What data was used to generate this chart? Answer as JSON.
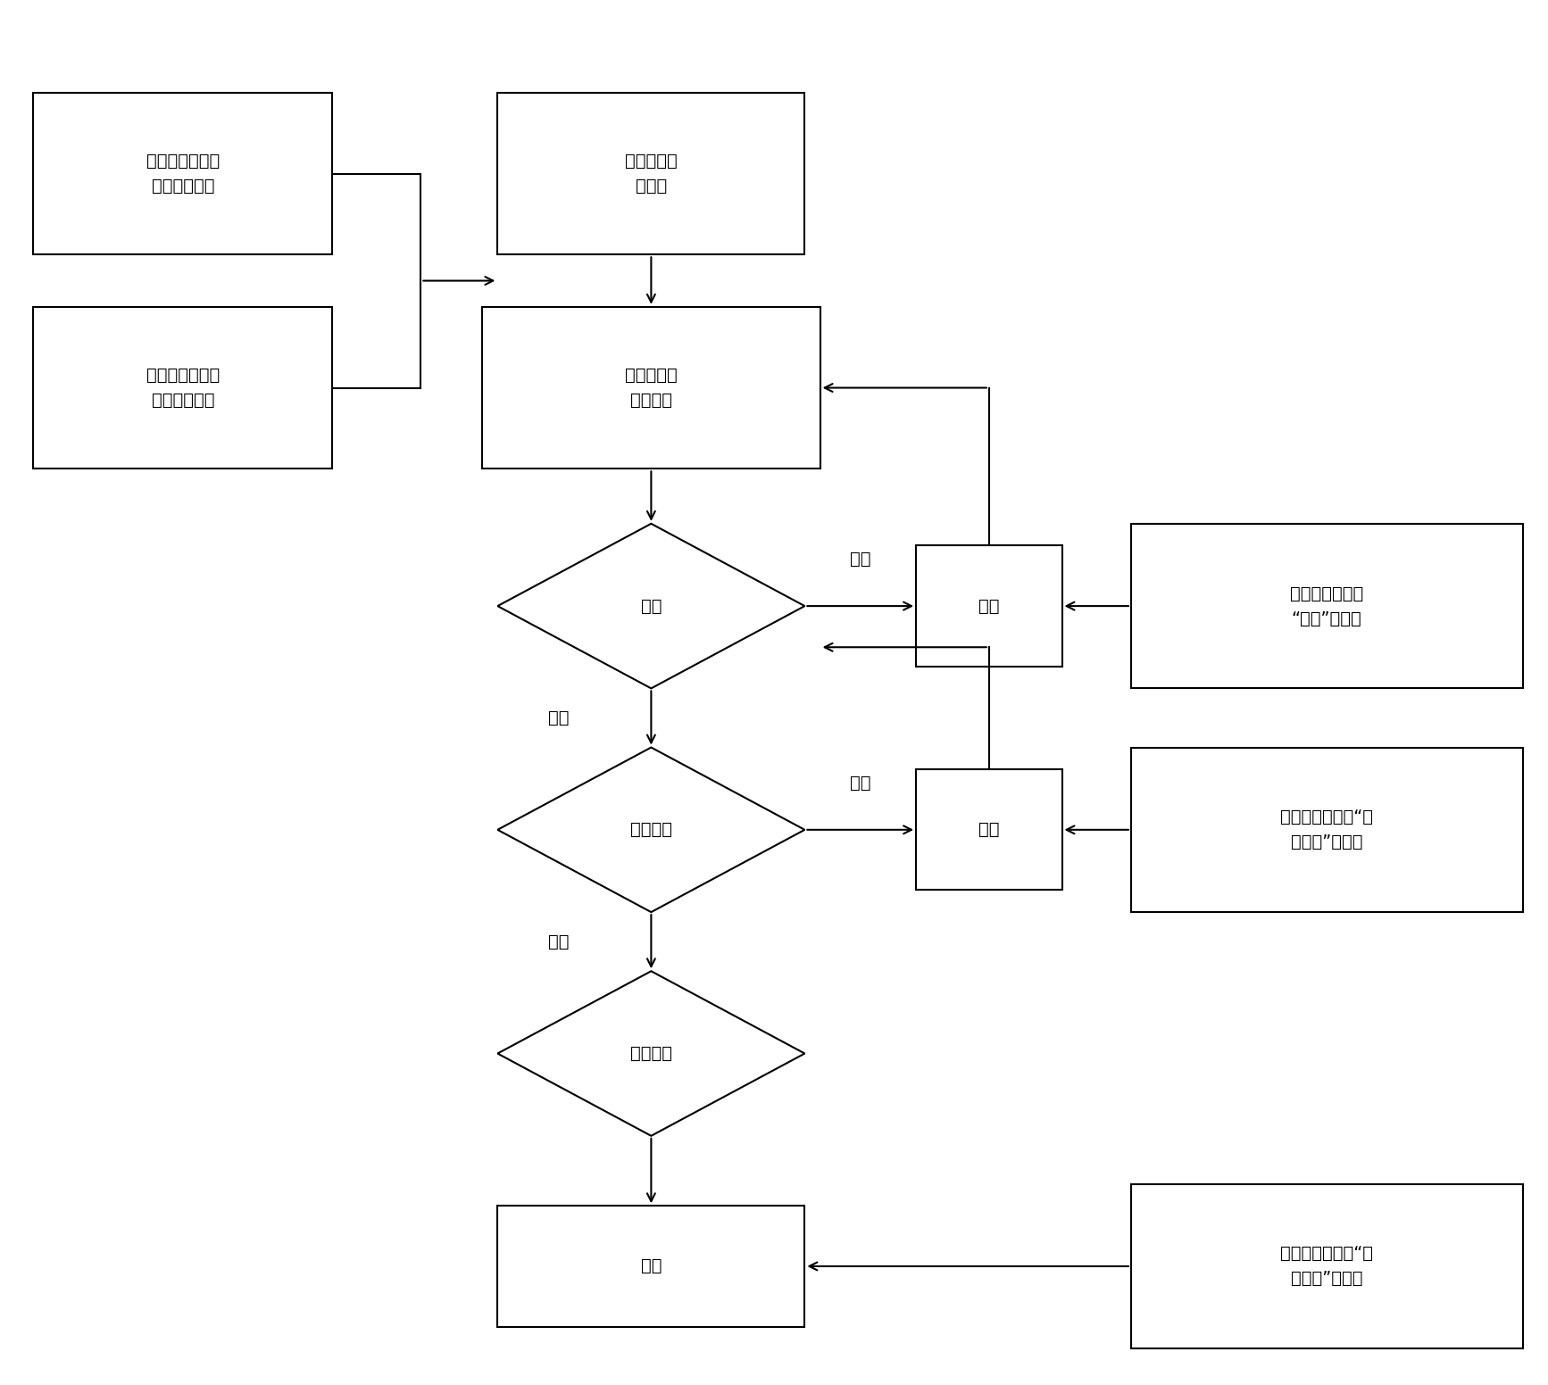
{
  "bg_color": "#ffffff",
  "fig_width": 17.34,
  "fig_height": 15.52,
  "box_dev1_text": "设备型号属性表\n的规范化开发",
  "box_dev2_text": "设备型号属性表\n的规范性填写",
  "box_norm_text": "规范设备型\n号属性",
  "box_extract_text": "提取设备的\n属性信息",
  "diamond_classify_text": "分类",
  "box_sort1_text": "排序",
  "box_def1_text": "定义设备属性中\n“分类”的排序",
  "diamond_devtype_text": "设备类型",
  "box_sort2_text": "排序",
  "box_def2_text": "定义设备属性中“设\n备类型”的排序",
  "diamond_devname_text": "设备名称",
  "box_sort3_text": "排序",
  "box_def3_text": "定义设备属性中“设\n备名称”的排序",
  "label_butong": "不同",
  "label_xiangtong": "相同"
}
